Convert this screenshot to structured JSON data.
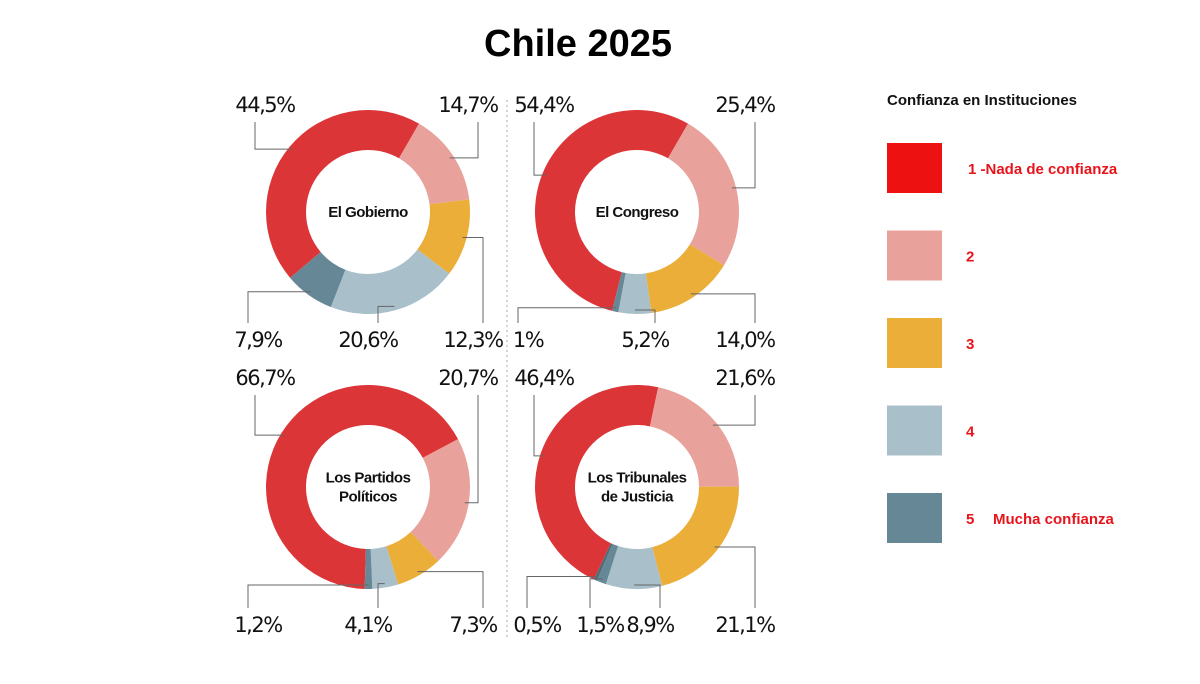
{
  "title": "Chile 2025",
  "legend": {
    "title": "Confianza en Instituciones",
    "items": [
      {
        "label": "1 -Nada de confianza",
        "color": "#ee1111"
      },
      {
        "label": "2",
        "color": "#e8a19b"
      },
      {
        "label": "3",
        "color": "#ebae38"
      },
      {
        "label": "4",
        "color": "#a9c0ca"
      },
      {
        "label": "5",
        "sublabel": "Mucha confianza",
        "color": "#668896"
      }
    ]
  },
  "chart_data": [
    {
      "type": "pie",
      "title": [
        "El Gobierno"
      ],
      "values": [
        44.5,
        14.7,
        12.3,
        20.6,
        7.9
      ],
      "value_labels": [
        "44,5%",
        "14,7%",
        "12,3%",
        "20,6%",
        "7,9%"
      ],
      "colors": [
        "#dc3538",
        "#e8a19b",
        "#ebae38",
        "#a9c0ca",
        "#668896"
      ]
    },
    {
      "type": "pie",
      "title": [
        "El Congreso"
      ],
      "values": [
        54.4,
        25.4,
        14.0,
        5.2,
        1
      ],
      "value_labels": [
        "54,4%",
        "25,4%",
        "14,0%",
        "5,2%",
        "1%"
      ],
      "colors": [
        "#dc3538",
        "#e8a19b",
        "#ebae38",
        "#a9c0ca",
        "#668896"
      ]
    },
    {
      "type": "pie",
      "title": [
        "Los Partidos",
        "Políticos"
      ],
      "values": [
        66.7,
        20.7,
        7.3,
        4.1,
        1.2
      ],
      "value_labels": [
        "66,7%",
        "20,7%",
        "7,3%",
        "4,1%",
        "1,2%"
      ],
      "colors": [
        "#dc3538",
        "#e8a19b",
        "#ebae38",
        "#a9c0ca",
        "#668896"
      ]
    },
    {
      "type": "pie",
      "title": [
        "Los Tribunales",
        "de Justicia"
      ],
      "values": [
        46.4,
        21.6,
        21.1,
        8.9,
        1.5,
        0.5
      ],
      "value_labels": [
        "46,4%",
        "21,6%",
        "21,1%",
        "8,9%",
        "1,5%",
        "0,5%"
      ],
      "colors": [
        "#dc3538",
        "#e8a19b",
        "#ebae38",
        "#a9c0ca",
        "#668896",
        "#4f6d79"
      ]
    }
  ]
}
